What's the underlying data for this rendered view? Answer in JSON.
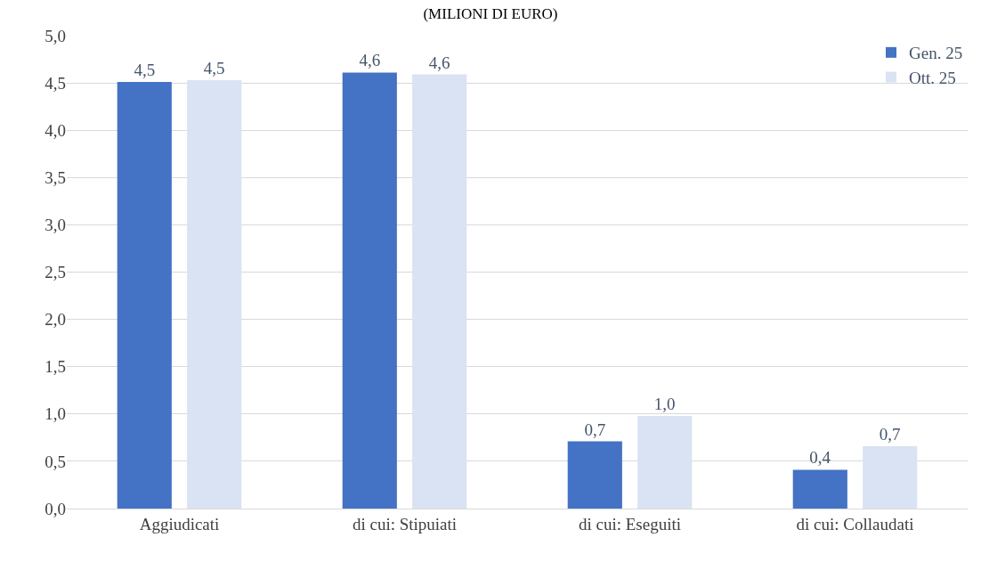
{
  "chart_data": {
    "type": "bar",
    "title": "(MILIONI DI EURO)",
    "categories": [
      "Aggiudicati",
      "di cui: Stipuiati",
      "di cui: Eseguiti",
      "di cui: Collaudati"
    ],
    "series": [
      {
        "name": "Gen. 25",
        "color": "#4472c4",
        "values": [
          4.51,
          4.61,
          0.71,
          0.41
        ],
        "value_labels": [
          "4,5",
          "4,6",
          "0,7",
          "0,4"
        ]
      },
      {
        "name": "Ott. 25",
        "color": "#dae3f3",
        "values": [
          4.53,
          4.59,
          0.98,
          0.66
        ],
        "value_labels": [
          "4,5",
          "4,6",
          "1,0",
          "0,7"
        ]
      }
    ],
    "ylim": [
      0,
      5
    ],
    "yticks": [
      {
        "value": 0,
        "label": "0,0"
      },
      {
        "value": 0.5,
        "label": "0,5"
      },
      {
        "value": 1,
        "label": "1,0"
      },
      {
        "value": 1.5,
        "label": "1,5"
      },
      {
        "value": 2,
        "label": "2,0"
      },
      {
        "value": 2.5,
        "label": "2,5"
      },
      {
        "value": 3,
        "label": "3,0"
      },
      {
        "value": 3.5,
        "label": "3,5"
      },
      {
        "value": 4,
        "label": "4,0"
      },
      {
        "value": 4.5,
        "label": "4,5"
      },
      {
        "value": 5,
        "label": "5,0"
      }
    ],
    "grid": "y",
    "legend": "top right"
  }
}
